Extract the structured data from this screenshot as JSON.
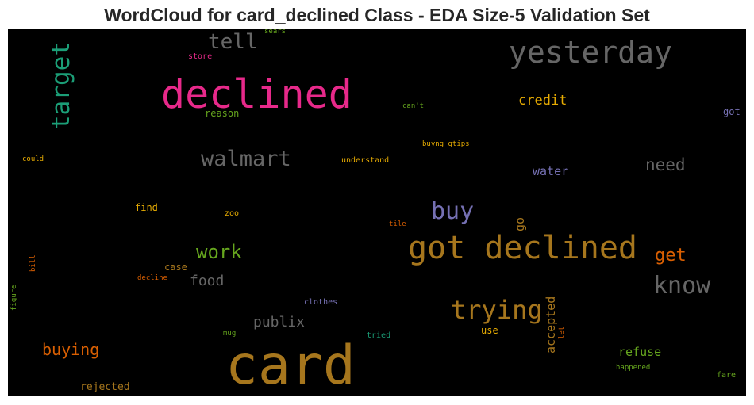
{
  "chart_data": {
    "type": "wordcloud",
    "title": "WordCloud for card_declined Class - EDA Size-5 Validation Set",
    "background": "#000000",
    "words": [
      {
        "text": "card",
        "color": "#a6761d"
      },
      {
        "text": "declined",
        "color": "#e7298a"
      },
      {
        "text": "got declined",
        "color": "#a6761d"
      },
      {
        "text": "yesterday",
        "color": "#666666"
      },
      {
        "text": "target",
        "color": "#1b9e77"
      },
      {
        "text": "tell",
        "color": "#666666"
      },
      {
        "text": "walmart",
        "color": "#666666"
      },
      {
        "text": "buy",
        "color": "#7570b3"
      },
      {
        "text": "trying",
        "color": "#a6761d"
      },
      {
        "text": "know",
        "color": "#666666"
      },
      {
        "text": "work",
        "color": "#66a61e"
      },
      {
        "text": "get",
        "color": "#d95f02"
      },
      {
        "text": "need",
        "color": "#666666"
      },
      {
        "text": "buying",
        "color": "#d95f02"
      },
      {
        "text": "food",
        "color": "#666666"
      },
      {
        "text": "publix",
        "color": "#666666"
      },
      {
        "text": "credit",
        "color": "#e6ab02"
      },
      {
        "text": "accepted",
        "color": "#a6761d"
      },
      {
        "text": "refuse",
        "color": "#66a61e"
      },
      {
        "text": "water",
        "color": "#7570b3"
      },
      {
        "text": "go",
        "color": "#a6761d"
      },
      {
        "text": "rejected",
        "color": "#a6761d"
      },
      {
        "text": "find",
        "color": "#e6ab02"
      },
      {
        "text": "case",
        "color": "#a6761d"
      },
      {
        "text": "use",
        "color": "#e6ab02"
      },
      {
        "text": "reason",
        "color": "#66a61e"
      },
      {
        "text": "store",
        "color": "#e7298a"
      },
      {
        "text": "sears",
        "color": "#66a61e"
      },
      {
        "text": "can't",
        "color": "#66a61e"
      },
      {
        "text": "got",
        "color": "#7570b3"
      },
      {
        "text": "buyng qtips",
        "color": "#e6ab02"
      },
      {
        "text": "understand",
        "color": "#e6ab02"
      },
      {
        "text": "could",
        "color": "#e6ab02"
      },
      {
        "text": "zoo",
        "color": "#e6ab02"
      },
      {
        "text": "tile",
        "color": "#d95f02"
      },
      {
        "text": "bill",
        "color": "#d95f02"
      },
      {
        "text": "decline",
        "color": "#d95f02"
      },
      {
        "text": "figure",
        "color": "#66a61e"
      },
      {
        "text": "clothes",
        "color": "#7570b3"
      },
      {
        "text": "mug",
        "color": "#66a61e"
      },
      {
        "text": "tried",
        "color": "#1b9e77"
      },
      {
        "text": "let",
        "color": "#d95f02"
      },
      {
        "text": "happened",
        "color": "#66a61e"
      },
      {
        "text": "fare",
        "color": "#66a61e"
      }
    ]
  }
}
